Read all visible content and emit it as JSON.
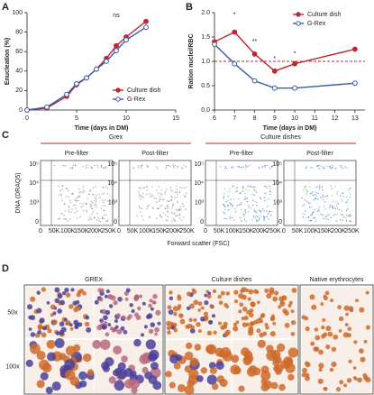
{
  "chart_data": [
    {
      "type": "line",
      "panel": "A",
      "xlabel": "Time (days in DM)",
      "ylabel": "Enucleation (%)",
      "x": [
        0,
        2,
        4,
        5,
        6,
        7,
        8,
        9,
        10,
        12
      ],
      "series": [
        {
          "name": "Culture dish",
          "color": "#c0272d",
          "marker": "filled",
          "values": [
            0,
            2,
            14,
            26,
            33,
            42,
            53,
            66,
            75,
            91
          ]
        },
        {
          "name": "G-Rex",
          "color": "#3a5ba8",
          "marker": "open",
          "values": [
            0,
            3,
            16,
            27,
            33,
            42,
            50,
            61,
            72,
            85
          ]
        }
      ],
      "xlim": [
        0,
        15
      ],
      "xticks": [
        0,
        5,
        10,
        15
      ],
      "ylim": [
        0,
        100
      ],
      "yticks": [
        0,
        20,
        40,
        60,
        80,
        100
      ],
      "annotations": [
        {
          "text": "ns",
          "x": 9,
          "y": 97
        }
      ],
      "legend": "lower-right"
    },
    {
      "type": "line",
      "panel": "B",
      "xlabel": "Time (days in DM)",
      "ylabel": "Ration nuclei/RBC",
      "x": [
        6,
        7,
        8,
        9,
        10,
        13
      ],
      "series": [
        {
          "name": "Culture dish",
          "color": "#c0272d",
          "marker": "filled",
          "values": [
            1.4,
            1.6,
            1.15,
            0.8,
            0.95,
            1.25
          ]
        },
        {
          "name": "G-Rex",
          "color": "#3a5ba8",
          "marker": "open",
          "values": [
            1.35,
            0.95,
            0.6,
            0.45,
            0.45,
            0.55
          ]
        }
      ],
      "xlim": [
        6,
        13.5
      ],
      "xticks": [
        6,
        7,
        8,
        9,
        10,
        11,
        12,
        13
      ],
      "ylim": [
        0,
        2
      ],
      "yticks": [
        {
          "value": 0,
          "label": "0.0"
        },
        0.5,
        {
          "value": 1,
          "label": "1.0"
        },
        1.5,
        {
          "value": 2,
          "label": "2.0"
        }
      ],
      "hline": {
        "value": 1,
        "color": "#c0272d"
      },
      "annotations": [
        {
          "text": "*",
          "x": 7,
          "y": 1.95
        },
        {
          "text": "**",
          "x": 8,
          "y": 1.4
        },
        {
          "text": "*",
          "x": 9,
          "y": 1.05
        },
        {
          "text": "*",
          "x": 10,
          "y": 1.15
        }
      ],
      "legend": "upper-right"
    }
  ],
  "flow_panel": {
    "panel": "C",
    "ylabel": "DNA (DRAQ5)",
    "xlabel": "Forward scatter (FSC)",
    "groups": [
      {
        "name": "Grex",
        "plots": [
          "Pre-filter",
          "Post-filter"
        ]
      },
      {
        "name": "Culture dishes",
        "plots": [
          "Pre-filter",
          "Post-filter"
        ]
      }
    ],
    "xticks": [
      "0",
      "50K",
      "100K",
      "150K",
      "200K",
      "250K"
    ],
    "yticks": [
      "0",
      "10³",
      "10⁴",
      "10⁵"
    ]
  },
  "micro_panel": {
    "panel": "D",
    "groups": [
      "GREX",
      "Culture dishes",
      "Native erythrocytes"
    ],
    "rows": [
      "50x",
      "100x"
    ]
  }
}
